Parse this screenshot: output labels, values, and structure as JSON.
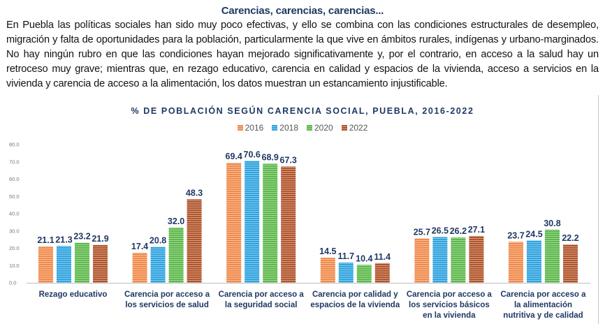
{
  "header": {
    "title": "Carencias, carencias, carencias...",
    "paragraph": "En Puebla las políticas sociales han sido muy poco efectivas, y ello se combina con las condiciones estructurales de desempleo, migración y falta de oportunidades para la población, particularmente la que vive en ámbitos rurales, indígenas y urbano-marginados. No hay ningún rubro en que las condiciones hayan mejorado significativamente y, por el contrario, en acceso a la salud hay un retroceso muy grave; mientras que, en rezago educativo, carencia en calidad y espacios de la vivienda, acceso a servicios en la vivienda y carencia de acceso a la alimentación, los datos muestran un estancamiento injustificable."
  },
  "chart_data": {
    "type": "bar",
    "title": "% DE POBLACIÓN SEGÚN CARENCIA SOCIAL, PUEBLA, 2016-2022",
    "xlabel": "",
    "ylabel": "",
    "ylim": [
      0,
      80
    ],
    "yticks": [
      "0.0",
      "10.0",
      "20.0",
      "30.0",
      "40.0",
      "50.0",
      "60.0",
      "70.0",
      "80.0"
    ],
    "grid": false,
    "legend_position": "top-center",
    "categories": [
      [
        "Rezago educativo"
      ],
      [
        "Carencia por acceso a",
        "los servicios de salud"
      ],
      [
        "Carencia por acceso a",
        "la seguridad social"
      ],
      [
        "Carencia por calidad y",
        "espacios de la vivienda"
      ],
      [
        "Carencia por acceso a",
        "los servicios básicos",
        "en la vivienda"
      ],
      [
        "Carencia por acceso a",
        "la alimentación",
        "nutritiva y de calidad"
      ]
    ],
    "series": [
      {
        "name": "2016",
        "color": "#f08a4b",
        "values": [
          21.1,
          17.4,
          69.4,
          14.5,
          25.7,
          23.7
        ]
      },
      {
        "name": "2018",
        "color": "#2ea3de",
        "values": [
          21.3,
          20.8,
          70.6,
          11.7,
          26.5,
          24.5
        ]
      },
      {
        "name": "2020",
        "color": "#5cb84a",
        "values": [
          23.2,
          32.0,
          68.9,
          10.4,
          26.2,
          30.8
        ]
      },
      {
        "name": "2022",
        "color": "#b0542a",
        "values": [
          21.9,
          48.3,
          67.3,
          11.4,
          27.1,
          22.2
        ]
      }
    ]
  }
}
